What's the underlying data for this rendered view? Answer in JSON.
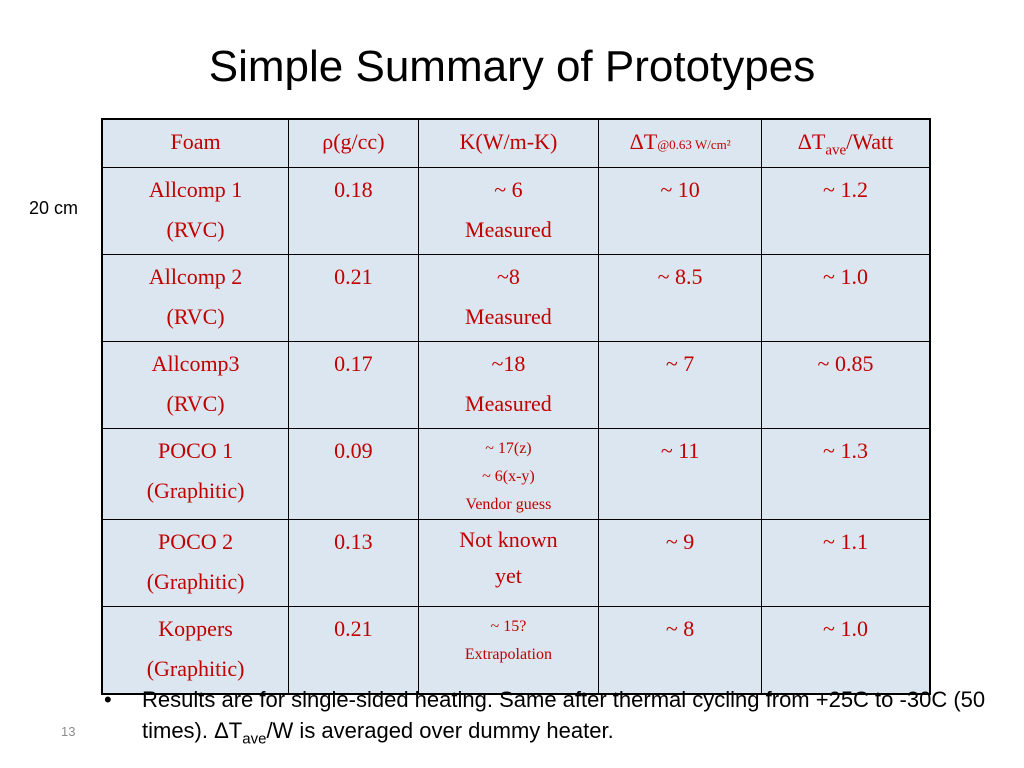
{
  "title": "Simple Summary of Prototypes",
  "side_note": "20 cm",
  "table": {
    "headers": {
      "foam": "Foam",
      "rho": "ρ(g/cc)",
      "k": "K(W/m-K)",
      "dt_main": "ΔT",
      "dt_sub": "@0.63 W/cm²",
      "dtw_main": "ΔT",
      "dtw_sub": "ave",
      "dtw_tail": "/Watt"
    },
    "rows": [
      {
        "foam": [
          "Allcomp 1",
          "(RVC)"
        ],
        "rho": "0.18",
        "k": [
          "~ 6",
          "Measured"
        ],
        "dt": "~ 10",
        "dtw": "~ 1.2"
      },
      {
        "foam": [
          "Allcomp 2",
          "(RVC)"
        ],
        "rho": "0.21",
        "k": [
          "~8",
          "Measured"
        ],
        "dt": "~ 8.5",
        "dtw": "~ 1.0"
      },
      {
        "foam": [
          "Allcomp3",
          "(RVC)"
        ],
        "rho": "0.17",
        "k": [
          "~18",
          "Measured"
        ],
        "dt": "~ 7",
        "dtw": "~ 0.85"
      },
      {
        "foam": [
          "POCO 1",
          "(Graphitic)"
        ],
        "rho": "0.09",
        "k_small": [
          "~ 17(z)",
          "~ 6(x-y)",
          "Vendor guess"
        ],
        "dt": "~ 11",
        "dtw": "~ 1.3"
      },
      {
        "foam": [
          "POCO 2",
          "(Graphitic)"
        ],
        "rho": "0.13",
        "k_wrap": [
          "Not known",
          "yet"
        ],
        "dt": "~ 9",
        "dtw": "~ 1.1"
      },
      {
        "foam": [
          "Koppers",
          "(Graphitic)"
        ],
        "rho": "0.21",
        "k_small": [
          "~ 15?",
          "Extrapolation"
        ],
        "dt": "~ 8",
        "dtw": "~ 1.0"
      }
    ]
  },
  "bullet": {
    "symbol": "•",
    "text_a": "Results are for single-sided heating. Same after thermal cycling from +25C to -30C (50 times). ΔT",
    "text_sub": "ave",
    "text_b": "/W is averaged over dummy heater."
  },
  "page_number": "13",
  "colors": {
    "table_text": "#c00000",
    "cell_bg": "#dce6f0",
    "page_number": "#8c8c8c"
  }
}
